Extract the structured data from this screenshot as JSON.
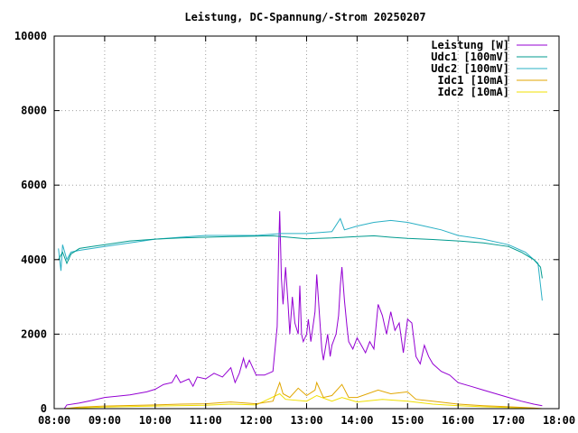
{
  "chart_data": {
    "type": "line",
    "title": "Leistung, DC-Spannung/-Strom 20250207",
    "xlabel": "",
    "ylabel": "",
    "xlim": [
      "08:00",
      "18:00"
    ],
    "ylim": [
      0,
      10000
    ],
    "x_ticks": [
      "08:00",
      "09:00",
      "10:00",
      "11:00",
      "12:00",
      "13:00",
      "14:00",
      "15:00",
      "16:00",
      "17:00",
      "18:00"
    ],
    "y_ticks": [
      0,
      2000,
      4000,
      6000,
      8000,
      10000
    ],
    "grid": true,
    "legend_position": "top-right",
    "series": [
      {
        "name": "Leistung [W]",
        "color": "#9400d3",
        "points": [
          [
            "08:12",
            0
          ],
          [
            "08:15",
            100
          ],
          [
            "08:30",
            150
          ],
          [
            "08:45",
            220
          ],
          [
            "09:00",
            300
          ],
          [
            "09:30",
            370
          ],
          [
            "09:50",
            450
          ],
          [
            "10:00",
            520
          ],
          [
            "10:10",
            650
          ],
          [
            "10:20",
            700
          ],
          [
            "10:25",
            900
          ],
          [
            "10:30",
            700
          ],
          [
            "10:40",
            800
          ],
          [
            "10:45",
            600
          ],
          [
            "10:50",
            850
          ],
          [
            "11:00",
            800
          ],
          [
            "11:10",
            950
          ],
          [
            "11:20",
            850
          ],
          [
            "11:30",
            1100
          ],
          [
            "11:35",
            700
          ],
          [
            "11:40",
            950
          ],
          [
            "11:45",
            1350
          ],
          [
            "11:48",
            1100
          ],
          [
            "11:52",
            1300
          ],
          [
            "12:00",
            900
          ],
          [
            "12:10",
            900
          ],
          [
            "12:20",
            1000
          ],
          [
            "12:25",
            2200
          ],
          [
            "12:27",
            4500
          ],
          [
            "12:28",
            5300
          ],
          [
            "12:30",
            3500
          ],
          [
            "12:32",
            2800
          ],
          [
            "12:35",
            3800
          ],
          [
            "12:38",
            2800
          ],
          [
            "12:40",
            2000
          ],
          [
            "12:43",
            3000
          ],
          [
            "12:46",
            2300
          ],
          [
            "12:50",
            2000
          ],
          [
            "12:52",
            3300
          ],
          [
            "12:54",
            2000
          ],
          [
            "12:56",
            1800
          ],
          [
            "13:00",
            2000
          ],
          [
            "13:02",
            2400
          ],
          [
            "13:05",
            1800
          ],
          [
            "13:10",
            2600
          ],
          [
            "13:12",
            3600
          ],
          [
            "13:15",
            2600
          ],
          [
            "13:18",
            1600
          ],
          [
            "13:20",
            1300
          ],
          [
            "13:25",
            2000
          ],
          [
            "13:28",
            1400
          ],
          [
            "13:30",
            1700
          ],
          [
            "13:35",
            2000
          ],
          [
            "13:38",
            2500
          ],
          [
            "13:40",
            3300
          ],
          [
            "13:42",
            3800
          ],
          [
            "13:45",
            2900
          ],
          [
            "13:48",
            2200
          ],
          [
            "13:50",
            1800
          ],
          [
            "13:55",
            1600
          ],
          [
            "14:00",
            1900
          ],
          [
            "14:05",
            1700
          ],
          [
            "14:10",
            1500
          ],
          [
            "14:15",
            1800
          ],
          [
            "14:20",
            1600
          ],
          [
            "14:25",
            2800
          ],
          [
            "14:30",
            2500
          ],
          [
            "14:35",
            2000
          ],
          [
            "14:40",
            2600
          ],
          [
            "14:45",
            2100
          ],
          [
            "14:50",
            2300
          ],
          [
            "14:55",
            1500
          ],
          [
            "15:00",
            2400
          ],
          [
            "15:05",
            2300
          ],
          [
            "15:10",
            1400
          ],
          [
            "15:15",
            1200
          ],
          [
            "15:20",
            1700
          ],
          [
            "15:25",
            1400
          ],
          [
            "15:30",
            1200
          ],
          [
            "15:40",
            1000
          ],
          [
            "15:50",
            900
          ],
          [
            "16:00",
            700
          ],
          [
            "16:15",
            600
          ],
          [
            "16:30",
            500
          ],
          [
            "16:45",
            400
          ],
          [
            "17:00",
            300
          ],
          [
            "17:15",
            200
          ],
          [
            "17:30",
            120
          ],
          [
            "17:40",
            80
          ]
        ]
      },
      {
        "name": "Udc1 [100mV]",
        "color": "#009b8f",
        "points": [
          [
            "08:05",
            4000
          ],
          [
            "08:10",
            4200
          ],
          [
            "08:15",
            3900
          ],
          [
            "08:20",
            4150
          ],
          [
            "08:30",
            4300
          ],
          [
            "08:45",
            4350
          ],
          [
            "09:00",
            4400
          ],
          [
            "09:30",
            4500
          ],
          [
            "10:00",
            4550
          ],
          [
            "10:30",
            4580
          ],
          [
            "11:00",
            4600
          ],
          [
            "11:30",
            4620
          ],
          [
            "12:00",
            4630
          ],
          [
            "12:20",
            4640
          ],
          [
            "12:30",
            4620
          ],
          [
            "13:00",
            4560
          ],
          [
            "13:30",
            4580
          ],
          [
            "14:00",
            4620
          ],
          [
            "14:20",
            4640
          ],
          [
            "14:40",
            4600
          ],
          [
            "15:00",
            4570
          ],
          [
            "15:30",
            4540
          ],
          [
            "16:00",
            4500
          ],
          [
            "16:30",
            4450
          ],
          [
            "17:00",
            4350
          ],
          [
            "17:15",
            4200
          ],
          [
            "17:30",
            4000
          ],
          [
            "17:38",
            3800
          ],
          [
            "17:40",
            3500
          ]
        ]
      },
      {
        "name": "Udc2 [100mV]",
        "color": "#2ab0c5",
        "points": [
          [
            "08:05",
            4300
          ],
          [
            "08:08",
            3700
          ],
          [
            "08:10",
            4400
          ],
          [
            "08:15",
            4000
          ],
          [
            "08:20",
            4200
          ],
          [
            "08:30",
            4250
          ],
          [
            "09:00",
            4350
          ],
          [
            "09:30",
            4450
          ],
          [
            "10:00",
            4550
          ],
          [
            "10:30",
            4600
          ],
          [
            "11:00",
            4650
          ],
          [
            "11:30",
            4650
          ],
          [
            "12:00",
            4650
          ],
          [
            "12:30",
            4700
          ],
          [
            "13:00",
            4700
          ],
          [
            "13:30",
            4750
          ],
          [
            "13:40",
            5100
          ],
          [
            "13:45",
            4800
          ],
          [
            "14:00",
            4900
          ],
          [
            "14:20",
            5000
          ],
          [
            "14:40",
            5050
          ],
          [
            "15:00",
            5000
          ],
          [
            "15:20",
            4900
          ],
          [
            "15:40",
            4800
          ],
          [
            "16:00",
            4650
          ],
          [
            "16:30",
            4550
          ],
          [
            "17:00",
            4400
          ],
          [
            "17:20",
            4200
          ],
          [
            "17:35",
            3900
          ],
          [
            "17:40",
            2900
          ]
        ]
      },
      {
        "name": "Idc1 [10mA]",
        "color": "#e1a600",
        "points": [
          [
            "08:12",
            0
          ],
          [
            "08:30",
            40
          ],
          [
            "09:00",
            70
          ],
          [
            "10:00",
            100
          ],
          [
            "10:30",
            120
          ],
          [
            "11:00",
            130
          ],
          [
            "11:30",
            180
          ],
          [
            "12:00",
            130
          ],
          [
            "12:20",
            200
          ],
          [
            "12:28",
            700
          ],
          [
            "12:32",
            400
          ],
          [
            "12:40",
            300
          ],
          [
            "12:50",
            550
          ],
          [
            "13:00",
            350
          ],
          [
            "13:10",
            500
          ],
          [
            "13:12",
            700
          ],
          [
            "13:20",
            300
          ],
          [
            "13:30",
            350
          ],
          [
            "13:42",
            650
          ],
          [
            "13:50",
            300
          ],
          [
            "14:00",
            300
          ],
          [
            "14:25",
            500
          ],
          [
            "14:40",
            400
          ],
          [
            "15:00",
            450
          ],
          [
            "15:10",
            250
          ],
          [
            "15:30",
            200
          ],
          [
            "16:00",
            120
          ],
          [
            "16:30",
            80
          ],
          [
            "17:00",
            50
          ],
          [
            "17:30",
            20
          ],
          [
            "17:40",
            0
          ]
        ]
      },
      {
        "name": "Idc2 [10mA]",
        "color": "#f0e000",
        "points": [
          [
            "08:12",
            0
          ],
          [
            "08:30",
            20
          ],
          [
            "09:00",
            40
          ],
          [
            "10:00",
            70
          ],
          [
            "11:00",
            90
          ],
          [
            "11:30",
            120
          ],
          [
            "12:00",
            100
          ],
          [
            "12:28",
            400
          ],
          [
            "12:35",
            250
          ],
          [
            "13:00",
            200
          ],
          [
            "13:12",
            350
          ],
          [
            "13:30",
            200
          ],
          [
            "13:42",
            300
          ],
          [
            "14:00",
            180
          ],
          [
            "14:30",
            250
          ],
          [
            "15:00",
            200
          ],
          [
            "15:30",
            120
          ],
          [
            "16:00",
            80
          ],
          [
            "16:30",
            50
          ],
          [
            "17:00",
            30
          ],
          [
            "17:40",
            0
          ]
        ]
      }
    ]
  }
}
